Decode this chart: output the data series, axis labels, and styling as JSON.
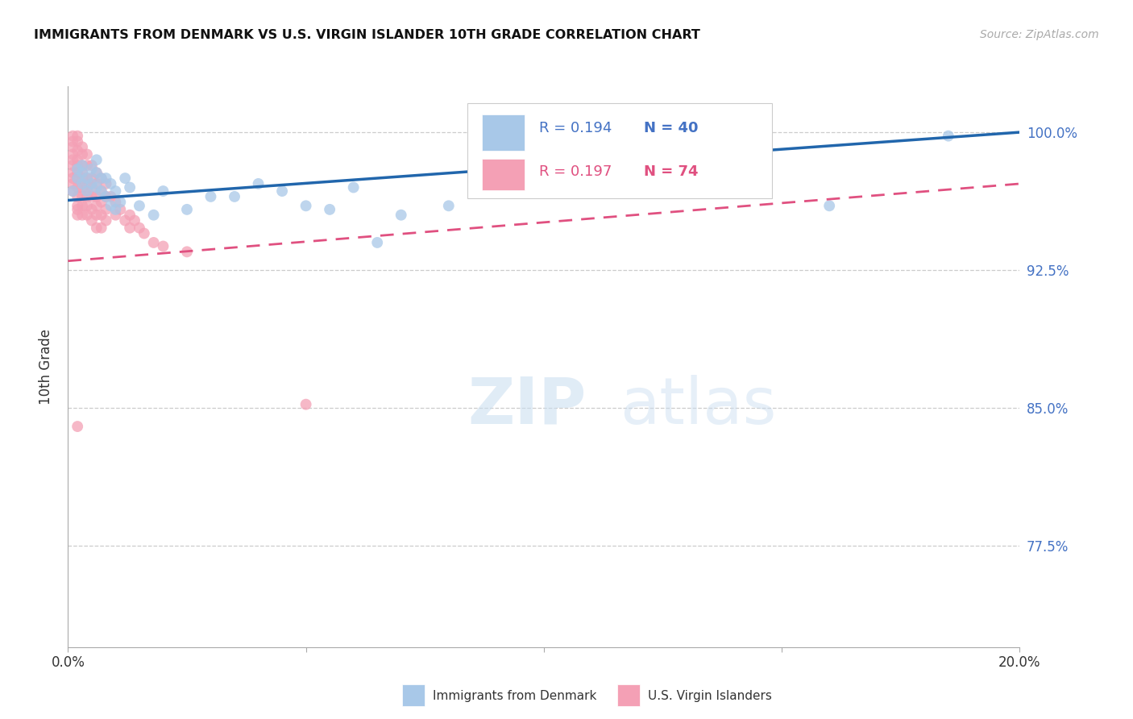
{
  "title": "IMMIGRANTS FROM DENMARK VS U.S. VIRGIN ISLANDER 10TH GRADE CORRELATION CHART",
  "source": "Source: ZipAtlas.com",
  "ylabel": "10th Grade",
  "xmin": 0.0,
  "xmax": 0.2,
  "ymin": 0.72,
  "ymax": 1.025,
  "yticks": [
    0.775,
    0.85,
    0.925,
    1.0
  ],
  "ytick_labels": [
    "77.5%",
    "85.0%",
    "92.5%",
    "100.0%"
  ],
  "xticks": [
    0.0,
    0.05,
    0.1,
    0.15,
    0.2
  ],
  "xtick_labels": [
    "0.0%",
    "",
    "",
    "",
    "20.0%"
  ],
  "legend_blue_r": "R = 0.194",
  "legend_blue_n": "N = 40",
  "legend_pink_r": "R = 0.197",
  "legend_pink_n": "N = 74",
  "blue_color": "#a8c8e8",
  "pink_color": "#f4a0b5",
  "blue_line_color": "#2166ac",
  "pink_line_color": "#e05080",
  "watermark_zip": "ZIP",
  "watermark_atlas": "atlas",
  "blue_scatter_x": [
    0.001,
    0.002,
    0.002,
    0.003,
    0.003,
    0.003,
    0.004,
    0.004,
    0.005,
    0.005,
    0.006,
    0.006,
    0.006,
    0.007,
    0.007,
    0.008,
    0.008,
    0.009,
    0.009,
    0.01,
    0.01,
    0.011,
    0.012,
    0.013,
    0.015,
    0.018,
    0.02,
    0.025,
    0.03,
    0.04,
    0.05,
    0.06,
    0.07,
    0.08,
    0.055,
    0.035,
    0.045,
    0.065,
    0.16,
    0.185
  ],
  "blue_scatter_y": [
    0.968,
    0.98,
    0.975,
    0.982,
    0.978,
    0.972,
    0.975,
    0.968,
    0.98,
    0.972,
    0.985,
    0.978,
    0.97,
    0.975,
    0.968,
    0.975,
    0.965,
    0.972,
    0.96,
    0.968,
    0.958,
    0.962,
    0.975,
    0.97,
    0.96,
    0.955,
    0.968,
    0.958,
    0.965,
    0.972,
    0.96,
    0.97,
    0.955,
    0.96,
    0.958,
    0.965,
    0.968,
    0.94,
    0.96,
    0.998
  ],
  "pink_scatter_x": [
    0.001,
    0.001,
    0.001,
    0.001,
    0.001,
    0.001,
    0.001,
    0.001,
    0.001,
    0.001,
    0.002,
    0.002,
    0.002,
    0.002,
    0.002,
    0.002,
    0.002,
    0.002,
    0.002,
    0.002,
    0.002,
    0.002,
    0.003,
    0.003,
    0.003,
    0.003,
    0.003,
    0.003,
    0.003,
    0.003,
    0.003,
    0.004,
    0.004,
    0.004,
    0.004,
    0.004,
    0.004,
    0.004,
    0.005,
    0.005,
    0.005,
    0.005,
    0.005,
    0.005,
    0.006,
    0.006,
    0.006,
    0.006,
    0.006,
    0.006,
    0.007,
    0.007,
    0.007,
    0.007,
    0.007,
    0.008,
    0.008,
    0.008,
    0.008,
    0.009,
    0.01,
    0.01,
    0.011,
    0.012,
    0.013,
    0.013,
    0.014,
    0.015,
    0.016,
    0.018,
    0.02,
    0.025,
    0.05,
    0.002
  ],
  "pink_scatter_y": [
    0.998,
    0.995,
    0.992,
    0.988,
    0.985,
    0.982,
    0.978,
    0.975,
    0.972,
    0.968,
    0.998,
    0.995,
    0.99,
    0.985,
    0.982,
    0.978,
    0.975,
    0.97,
    0.965,
    0.96,
    0.958,
    0.955,
    0.992,
    0.988,
    0.982,
    0.978,
    0.975,
    0.97,
    0.965,
    0.96,
    0.955,
    0.988,
    0.982,
    0.975,
    0.97,
    0.965,
    0.96,
    0.955,
    0.982,
    0.975,
    0.97,
    0.965,
    0.958,
    0.952,
    0.978,
    0.972,
    0.965,
    0.96,
    0.955,
    0.948,
    0.975,
    0.968,
    0.962,
    0.955,
    0.948,
    0.972,
    0.965,
    0.958,
    0.952,
    0.965,
    0.962,
    0.955,
    0.958,
    0.952,
    0.955,
    0.948,
    0.952,
    0.948,
    0.945,
    0.94,
    0.938,
    0.935,
    0.852,
    0.84
  ]
}
